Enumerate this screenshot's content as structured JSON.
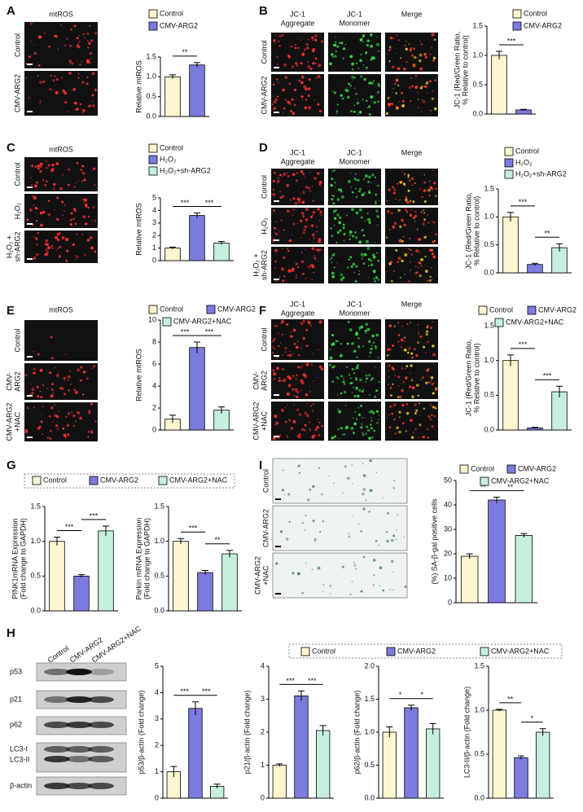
{
  "figure": {
    "letters": [
      "A",
      "B",
      "C",
      "D",
      "E",
      "F",
      "G",
      "I",
      "H"
    ],
    "images": [
      {
        "titles": [
          [
            "mtROS"
          ]
        ],
        "title_colors": [
          "#e02020"
        ],
        "rows": [
          [
            "Control"
          ],
          [
            "CMV-ARG2"
          ]
        ]
      },
      {
        "titles": [
          [
            "JC-1",
            "Aggregate"
          ],
          [
            "JC-1",
            "Monomer"
          ],
          [
            "Merge"
          ]
        ],
        "title_colors": [
          "#e02020",
          "#20a040",
          "#8040a0"
        ],
        "rows": [
          [
            "Control"
          ],
          [
            "CMV-ARG2"
          ]
        ]
      },
      {
        "titles": [
          [
            "mtROS"
          ]
        ],
        "title_colors": [
          "#e02020"
        ],
        "rows": [
          [
            "Control"
          ],
          [
            "H₂O₂"
          ],
          [
            "H₂O₂ +",
            "sh-ARG2"
          ]
        ]
      },
      {
        "titles": [
          [
            "JC-1",
            "Aggregate"
          ],
          [
            "JC-1",
            "Monomer"
          ],
          [
            "Merge"
          ]
        ],
        "title_colors": [
          "#e02020",
          "#20a040",
          "#8040a0"
        ],
        "rows": [
          [
            "Control"
          ],
          [
            "H₂O₂"
          ],
          [
            "H₂O₂ +",
            "sh-ARG2"
          ]
        ]
      },
      {
        "titles": [
          [
            "mtROS"
          ]
        ],
        "title_colors": [
          "#e02020"
        ],
        "rows": [
          [
            "Control"
          ],
          [
            "CMV-",
            "ARG2"
          ],
          [
            "CMV-ARG2",
            "+NAC"
          ]
        ]
      },
      {
        "titles": [
          [
            "JC-1",
            "Aggregate"
          ],
          [
            "JC-1",
            "Monomer"
          ],
          [
            "Merge"
          ]
        ],
        "title_colors": [
          "#e02020",
          "#20a040",
          "#8040a0"
        ],
        "rows": [
          [
            "Control"
          ],
          [
            "CMV-",
            "ARG2"
          ],
          [
            "CMV-ARG2",
            "+NAC"
          ]
        ]
      },
      {
        "titles": [],
        "title_colors": [],
        "rows": [
          [
            "Control"
          ],
          [
            "CMV-ARG2"
          ],
          [
            "CMV-ARG2",
            "+NAC"
          ]
        ]
      }
    ],
    "blot": {
      "lanes": [
        "Control",
        "CMV-ARG2",
        "CMV-ARG2+NAC"
      ],
      "bands": [
        "p53",
        "p21",
        "p62",
        "LC3-I",
        "LC3-II",
        "β-actin"
      ]
    }
  },
  "chart_data": [
    {
      "type": "bar",
      "ylabel": [
        "Relative mtROS"
      ],
      "legend": [
        "Control",
        "CMV-ARG2"
      ],
      "colors": [
        "#fdf6cf",
        "#7b7be0"
      ],
      "values": [
        1.0,
        1.3
      ],
      "errors": [
        0.05,
        0.06
      ],
      "sig": [
        "**"
      ],
      "ylim": [
        0,
        1.5
      ],
      "yticks": [
        {
          "value": 0,
          "label": "0.0"
        },
        0.5,
        {
          "value": 1,
          "label": "1.0"
        },
        1.5
      ]
    },
    {
      "type": "bar",
      "ylabel": [
        "JC-1 (Red/Green Ratio,",
        "% Relative to control)"
      ],
      "legend": [
        "Control",
        "CMV-ARG2"
      ],
      "colors": [
        "#fdf6cf",
        "#7b7be0"
      ],
      "values": [
        1.0,
        0.07
      ],
      "errors": [
        0.07,
        0.01
      ],
      "sig": [
        "***"
      ],
      "ylim": [
        0,
        1.5
      ],
      "yticks": [
        {
          "value": 0,
          "label": "0.0"
        },
        0.5,
        {
          "value": 1,
          "label": "1.0"
        },
        1.5
      ]
    },
    {
      "type": "bar",
      "ylabel": [
        "Relative mtROS"
      ],
      "legend": [
        "Control",
        "H₂O₂",
        "H₂O₂+sh-ARG2"
      ],
      "colors": [
        "#fdf6cf",
        "#7b7be0",
        "#c5f0dc"
      ],
      "values": [
        1.0,
        3.6,
        1.4
      ],
      "errors": [
        0.08,
        0.2,
        0.12
      ],
      "sig": [
        "***",
        "***"
      ],
      "ylim": [
        0,
        5
      ],
      "yticks": [
        0,
        1,
        2,
        3,
        4,
        5
      ]
    },
    {
      "type": "bar",
      "ylabel": [
        "JC-1 (Red/Green Ratio,",
        "% Relative to control)"
      ],
      "legend": [
        "Control",
        "H₂O₂",
        "H₂O₂+sh-ARG2"
      ],
      "colors": [
        "#fdf6cf",
        "#7b7be0",
        "#c5f0dc"
      ],
      "values": [
        1.0,
        0.15,
        0.45
      ],
      "errors": [
        0.08,
        0.02,
        0.07
      ],
      "sig": [
        "***",
        "**"
      ],
      "ylim": [
        0,
        1.5
      ],
      "yticks": [
        {
          "value": 0,
          "label": "0.0"
        },
        0.5,
        {
          "value": 1,
          "label": "1.0"
        },
        1.5
      ]
    },
    {
      "type": "bar",
      "ylabel": [
        "Relative mtROS"
      ],
      "legend": [
        "Control",
        "CMV-ARG2",
        "CMV-ARG2+NAC"
      ],
      "colors": [
        "#fdf6cf",
        "#7b7be0",
        "#c5f0dc"
      ],
      "values": [
        1.0,
        7.5,
        1.8
      ],
      "errors": [
        0.35,
        0.5,
        0.3
      ],
      "sig": [
        "***",
        "***"
      ],
      "ylim": [
        0,
        10
      ],
      "yticks": [
        0,
        2,
        4,
        6,
        8,
        10
      ]
    },
    {
      "type": "bar",
      "ylabel": [
        "JC-1 (Red/Green Ratio,",
        "% Relative to control)"
      ],
      "legend": [
        "Control",
        "CMV-ARG2",
        "CMV-ARG2+NAC"
      ],
      "colors": [
        "#fdf6cf",
        "#7b7be0",
        "#c5f0dc"
      ],
      "values": [
        1.0,
        0.03,
        0.55
      ],
      "errors": [
        0.08,
        0.01,
        0.08
      ],
      "sig": [
        "***",
        "***"
      ],
      "ylim": [
        0,
        1.5
      ],
      "yticks": [
        {
          "value": 0,
          "label": "0.0"
        },
        0.5,
        {
          "value": 1,
          "label": "1.0"
        },
        1.5
      ]
    },
    {
      "type": "bar",
      "ylabel": [
        "PINK1mRNA Expression",
        "(Fold change to GAPDH)"
      ],
      "legend": [
        "Control",
        "CMV-ARG2",
        "CMV-ARG2+NAC"
      ],
      "colors": [
        "#fdf6cf",
        "#7b7be0",
        "#c5f0dc"
      ],
      "values": [
        1.0,
        0.5,
        1.15
      ],
      "errors": [
        0.06,
        0.02,
        0.07
      ],
      "sig": [
        "***",
        "***"
      ],
      "ylim": [
        0,
        1.5
      ],
      "yticks": [
        {
          "value": 0,
          "label": "0.0"
        },
        0.5,
        {
          "value": 1,
          "label": "1.0"
        },
        1.5
      ]
    },
    {
      "type": "bar",
      "ylabel": [
        "Parkin mRNA Expression",
        "(Fold change to GAPDH)"
      ],
      "colors": [
        "#fdf6cf",
        "#7b7be0",
        "#c5f0dc"
      ],
      "values": [
        1.0,
        0.55,
        0.82
      ],
      "errors": [
        0.04,
        0.03,
        0.05
      ],
      "sig": [
        "***",
        "**"
      ],
      "ylim": [
        0,
        1.5
      ],
      "yticks": [
        {
          "value": 0,
          "label": "0.0"
        },
        0.5,
        {
          "value": 1,
          "label": "1.0"
        },
        1.5
      ]
    },
    {
      "type": "bar",
      "ylabel": [
        "(%) SA-β-gal positive cells"
      ],
      "legend": [
        "Control",
        "CMV-ARG2",
        "CMV-ARG2+NAC"
      ],
      "colors": [
        "#fdf6cf",
        "#7b7be0",
        "#c5f0dc"
      ],
      "values": [
        19,
        42,
        27.5
      ],
      "errors": [
        1,
        1.2,
        0.8
      ],
      "sig": [
        "**",
        "**"
      ],
      "ylim": [
        0,
        50
      ],
      "yticks": [
        0,
        10,
        20,
        30,
        40,
        50
      ]
    },
    {
      "type": "bar",
      "ylabel": [
        "p53/β-actin (Fold change)"
      ],
      "legend": [
        "Control",
        "CMV-ARG2",
        "CMV-ARG2+NAC"
      ],
      "colors": [
        "#fdf6cf",
        "#7b7be0",
        "#c5f0dc"
      ],
      "values": [
        1.0,
        3.4,
        0.45
      ],
      "errors": [
        0.2,
        0.25,
        0.08
      ],
      "sig": [
        "***",
        "***"
      ],
      "ylim": [
        0,
        5
      ],
      "yticks": [
        0,
        1,
        2,
        3,
        4,
        5
      ]
    },
    {
      "type": "bar",
      "ylabel": [
        "p21/β-actin (Fold change)"
      ],
      "colors": [
        "#fdf6cf",
        "#7b7be0",
        "#c5f0dc"
      ],
      "values": [
        1.0,
        3.1,
        2.05
      ],
      "errors": [
        0.04,
        0.15,
        0.15
      ],
      "sig": [
        "***",
        "***"
      ],
      "ylim": [
        0,
        4
      ],
      "yticks": [
        0,
        1,
        2,
        3,
        4
      ]
    },
    {
      "type": "bar",
      "ylabel": [
        "p62/β-actin (Fold change)"
      ],
      "colors": [
        "#fdf6cf",
        "#7b7be0",
        "#c5f0dc"
      ],
      "values": [
        1.0,
        1.37,
        1.05
      ],
      "errors": [
        0.08,
        0.04,
        0.08
      ],
      "sig": [
        "*",
        "*"
      ],
      "ylim": [
        0,
        2
      ],
      "yticks": [
        {
          "value": 0,
          "label": "0.0"
        },
        0.5,
        {
          "value": 1,
          "label": "1.0"
        },
        1.5,
        {
          "value": 2,
          "label": "2.0"
        }
      ]
    },
    {
      "type": "bar",
      "ylabel": [
        "LC3-II/β-actin (Fold change)"
      ],
      "colors": [
        "#fdf6cf",
        "#7b7be0",
        "#c5f0dc"
      ],
      "values": [
        1.0,
        0.46,
        0.75
      ],
      "errors": [
        0.01,
        0.02,
        0.04
      ],
      "sig": [
        "**",
        "*"
      ],
      "ylim": [
        0,
        1.5
      ],
      "yticks": [
        {
          "value": 0,
          "label": "0.0"
        },
        0.5,
        {
          "value": 1,
          "label": "1.0"
        },
        1.5
      ]
    }
  ]
}
